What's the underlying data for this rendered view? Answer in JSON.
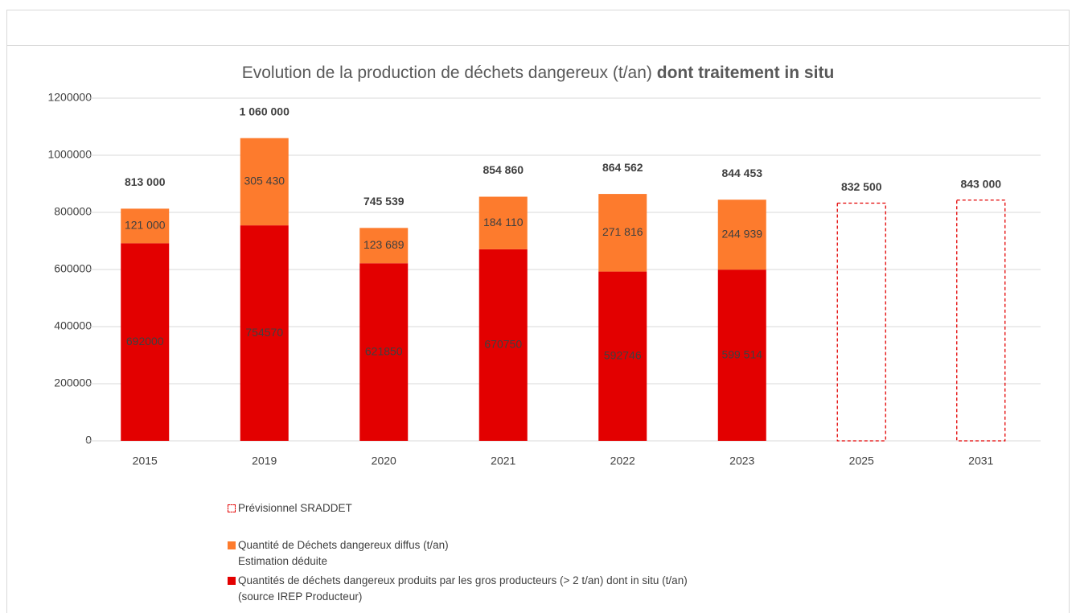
{
  "chart_data": {
    "type": "bar",
    "stacked": true,
    "title": [
      "Evolution de la production de déchets dangereux (t/an)",
      "dont traitement in situ"
    ],
    "categories": [
      "2015",
      "2019",
      "2020",
      "2021",
      "2022",
      "2023",
      "2025",
      "2031"
    ],
    "ylim": [
      0,
      1200000
    ],
    "yticks": [
      0,
      200000,
      400000,
      600000,
      800000,
      1000000,
      1200000
    ],
    "grid": true,
    "series": [
      {
        "name": "Quantités de déchets dangereux produits par les gros producteurs (> 2 t/an) dont in situ (t/an)\n(source IREP Producteur)",
        "color": "#e30000",
        "style": "solid",
        "values": [
          692000,
          754570,
          621850,
          670750,
          592746,
          599514,
          null,
          null
        ],
        "value_labels": [
          "692000",
          "754570",
          "621850",
          "670750",
          "592746",
          "599 514",
          null,
          null
        ]
      },
      {
        "name": "Quantité de Déchets dangereux diffus (t/an)\nEstimation déduite",
        "color": "#fd7b2d",
        "style": "solid",
        "values": [
          121000,
          305430,
          123689,
          184110,
          271816,
          244939,
          null,
          null
        ],
        "value_labels": [
          "121 000",
          "305 430",
          "123 689",
          "184 110",
          "271 816",
          "244 939",
          null,
          null
        ]
      },
      {
        "name": "Prévisionnel SRADDET",
        "color": "#e30000",
        "style": "dashed",
        "values": [
          null,
          null,
          null,
          null,
          null,
          null,
          832500,
          843000
        ],
        "value_labels": [
          null,
          null,
          null,
          null,
          null,
          null,
          "832 500",
          "843 000"
        ]
      }
    ],
    "totals": [
      813000,
      1060000,
      745539,
      854860,
      864562,
      844453,
      null,
      null
    ],
    "total_labels": [
      "813 000",
      "1 060 000",
      "745 539",
      "854 860",
      "864 562",
      "844 453",
      null,
      null
    ],
    "legend_order": [
      2,
      1,
      0
    ]
  }
}
